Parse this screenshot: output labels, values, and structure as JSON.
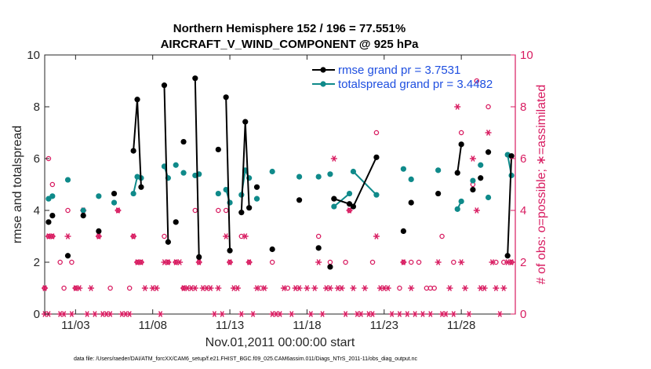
{
  "chart_data": {
    "type": "line",
    "title": "Northern Hemisphere 152 / 196 = 77.551%",
    "subtitle": "AIRCRAFT_V_WIND_COMPONENT @ 925 hPa",
    "xlabel": "Nov.01,2011 00:00:00 start",
    "ylabel": "rmse and totalspread",
    "y2label": "# of obs: o=possible; ∗=assimilated",
    "footer": "data file: /Users/raeder/DAI/ATM_forcXX/CAM6_setup/f.e21.FHIST_BGC.f09_025.CAM6assim.011/Diags_NTrS_2011-11/obs_diag_output.nc",
    "xlim": [
      1,
      31.5
    ],
    "ylim": [
      0,
      10
    ],
    "y2lim": [
      0,
      10
    ],
    "x_ticks": [
      3,
      8,
      13,
      18,
      23,
      28
    ],
    "x_tick_labels": [
      "11/03",
      "11/08",
      "11/13",
      "11/18",
      "11/23",
      "11/28"
    ],
    "y_ticks": [
      0,
      2,
      4,
      6,
      8,
      10
    ],
    "y_tick_labels": [
      "0",
      "2",
      "4",
      "6",
      "8",
      "10"
    ],
    "y2_ticks": [
      0,
      2,
      4,
      6,
      8,
      10
    ],
    "y2_tick_labels": [
      "0",
      "2",
      "4",
      "6",
      "8",
      "10"
    ],
    "colors": {
      "rmse": "#000000",
      "spread": "#0f8a8a",
      "obs": "#d81b60",
      "legend_text": "#1f4fe0"
    },
    "legend": [
      {
        "name": "rmse grand pr = 3.7531",
        "color": "#000000"
      },
      {
        "name": "totalspread grand pr = 3.4482",
        "color": "#0f8a8a"
      }
    ],
    "series": [
      {
        "name": "rmse",
        "color": "#000000",
        "points": [
          {
            "x": 1.25,
            "y": 3.55
          },
          {
            "x": 1.5,
            "y": 3.8
          },
          {
            "x": 2.5,
            "y": 2.25
          },
          {
            "x": 3.5,
            "y": 3.8
          },
          {
            "x": 4.5,
            "y": 3.2
          },
          {
            "x": 5.5,
            "y": 4.65
          },
          {
            "x": 6.75,
            "y": 6.3
          },
          {
            "x": 7.0,
            "y": 8.28
          },
          {
            "x": 7.25,
            "y": 4.9
          },
          {
            "x": 8.75,
            "y": 8.83
          },
          {
            "x": 9.0,
            "y": 2.78
          },
          {
            "x": 9.5,
            "y": 3.55
          },
          {
            "x": 10.0,
            "y": 6.65
          },
          {
            "x": 10.75,
            "y": 9.1
          },
          {
            "x": 11.0,
            "y": 2.2
          },
          {
            "x": 12.25,
            "y": 6.35
          },
          {
            "x": 12.75,
            "y": 8.37
          },
          {
            "x": 13.0,
            "y": 2.45
          },
          {
            "x": 13.75,
            "y": 3.92
          },
          {
            "x": 14.0,
            "y": 7.42
          },
          {
            "x": 14.25,
            "y": 4.1
          },
          {
            "x": 14.75,
            "y": 4.9
          },
          {
            "x": 15.75,
            "y": 2.5
          },
          {
            "x": 17.5,
            "y": 4.4
          },
          {
            "x": 18.75,
            "y": 2.55
          },
          {
            "x": 19.5,
            "y": 1.82
          },
          {
            "x": 19.75,
            "y": 4.45
          },
          {
            "x": 20.75,
            "y": 4.25
          },
          {
            "x": 21.0,
            "y": 4.15
          },
          {
            "x": 22.5,
            "y": 6.05
          },
          {
            "x": 24.25,
            "y": 3.2
          },
          {
            "x": 24.75,
            "y": 4.3
          },
          {
            "x": 26.5,
            "y": 4.65
          },
          {
            "x": 27.75,
            "y": 5.45
          },
          {
            "x": 28.0,
            "y": 6.55
          },
          {
            "x": 28.75,
            "y": 4.8
          },
          {
            "x": 29.25,
            "y": 5.25
          },
          {
            "x": 29.75,
            "y": 6.25
          },
          {
            "x": 31.0,
            "y": 2.25
          },
          {
            "x": 31.25,
            "y": 6.1
          }
        ],
        "segments": [
          [
            6,
            7,
            8
          ],
          [
            9,
            10
          ],
          [
            13,
            14
          ],
          [
            16,
            17
          ],
          [
            18,
            19,
            20
          ],
          [
            26,
            27
          ],
          [
            28,
            29
          ],
          [
            33,
            34
          ],
          [
            38,
            39
          ]
        ]
      },
      {
        "name": "totalspread",
        "color": "#0f8a8a",
        "points": [
          {
            "x": 1.25,
            "y": 4.45
          },
          {
            "x": 1.5,
            "y": 4.55
          },
          {
            "x": 2.5,
            "y": 5.18
          },
          {
            "x": 3.5,
            "y": 4.0
          },
          {
            "x": 4.5,
            "y": 4.55
          },
          {
            "x": 5.5,
            "y": 4.3
          },
          {
            "x": 6.75,
            "y": 4.65
          },
          {
            "x": 7.0,
            "y": 5.3
          },
          {
            "x": 7.25,
            "y": 5.25
          },
          {
            "x": 8.75,
            "y": 5.7
          },
          {
            "x": 9.0,
            "y": 5.25
          },
          {
            "x": 9.5,
            "y": 5.75
          },
          {
            "x": 10.0,
            "y": 5.45
          },
          {
            "x": 10.75,
            "y": 5.35
          },
          {
            "x": 11.0,
            "y": 5.4
          },
          {
            "x": 12.25,
            "y": 4.65
          },
          {
            "x": 12.75,
            "y": 4.8
          },
          {
            "x": 13.0,
            "y": 4.3
          },
          {
            "x": 13.75,
            "y": 4.6
          },
          {
            "x": 14.0,
            "y": 5.55
          },
          {
            "x": 14.25,
            "y": 5.25
          },
          {
            "x": 14.75,
            "y": 4.45
          },
          {
            "x": 15.75,
            "y": 5.5
          },
          {
            "x": 17.5,
            "y": 5.3
          },
          {
            "x": 18.75,
            "y": 5.3
          },
          {
            "x": 19.5,
            "y": 5.4
          },
          {
            "x": 19.75,
            "y": 4.15
          },
          {
            "x": 20.75,
            "y": 4.65
          },
          {
            "x": 21.0,
            "y": 5.5
          },
          {
            "x": 22.5,
            "y": 4.6
          },
          {
            "x": 24.25,
            "y": 5.6
          },
          {
            "x": 24.75,
            "y": 5.2
          },
          {
            "x": 26.5,
            "y": 5.55
          },
          {
            "x": 27.75,
            "y": 4.05
          },
          {
            "x": 28.0,
            "y": 4.35
          },
          {
            "x": 28.75,
            "y": 5.15
          },
          {
            "x": 29.25,
            "y": 5.75
          },
          {
            "x": 29.75,
            "y": 4.5
          },
          {
            "x": 31.0,
            "y": 6.15
          },
          {
            "x": 31.25,
            "y": 5.35
          }
        ],
        "segments": [
          [
            6,
            7,
            8
          ],
          [
            9,
            10
          ],
          [
            13,
            14
          ],
          [
            16,
            17
          ],
          [
            18,
            19,
            20
          ],
          [
            26,
            27
          ],
          [
            28,
            29
          ],
          [
            33,
            34
          ],
          [
            38,
            39
          ]
        ]
      },
      {
        "name": "possible obs",
        "marker": "o",
        "axis": "right",
        "points": [
          {
            "x": 1.0,
            "y": 1
          },
          {
            "x": 1.25,
            "y": 3
          },
          {
            "x": 1.5,
            "y": 3
          },
          {
            "x": 1.5,
            "y": 5
          },
          {
            "x": 1.25,
            "y": 6
          },
          {
            "x": 2.0,
            "y": 2
          },
          {
            "x": 2.25,
            "y": 1
          },
          {
            "x": 2.5,
            "y": 4
          },
          {
            "x": 2.75,
            "y": 2
          },
          {
            "x": 3.0,
            "y": 1
          },
          {
            "x": 3.5,
            "y": 4
          },
          {
            "x": 4.5,
            "y": 3
          },
          {
            "x": 5.25,
            "y": 1
          },
          {
            "x": 5.75,
            "y": 4
          },
          {
            "x": 6.5,
            "y": 1
          },
          {
            "x": 6.75,
            "y": 3
          },
          {
            "x": 7.0,
            "y": 2
          },
          {
            "x": 7.25,
            "y": 2
          },
          {
            "x": 8.75,
            "y": 3
          },
          {
            "x": 9.0,
            "y": 2
          },
          {
            "x": 9.5,
            "y": 2
          },
          {
            "x": 10.0,
            "y": 1
          },
          {
            "x": 10.75,
            "y": 4
          },
          {
            "x": 11.0,
            "y": 2
          },
          {
            "x": 12.25,
            "y": 4
          },
          {
            "x": 12.75,
            "y": 4
          },
          {
            "x": 13.0,
            "y": 2
          },
          {
            "x": 13.75,
            "y": 3
          },
          {
            "x": 14.25,
            "y": 2
          },
          {
            "x": 15.0,
            "y": 1
          },
          {
            "x": 15.75,
            "y": 2
          },
          {
            "x": 16.75,
            "y": 1
          },
          {
            "x": 18.75,
            "y": 3
          },
          {
            "x": 19.5,
            "y": 2
          },
          {
            "x": 20.5,
            "y": 2
          },
          {
            "x": 20.75,
            "y": 4
          },
          {
            "x": 22.25,
            "y": 2
          },
          {
            "x": 22.5,
            "y": 7
          },
          {
            "x": 24.0,
            "y": 1
          },
          {
            "x": 24.25,
            "y": 2
          },
          {
            "x": 24.75,
            "y": 2
          },
          {
            "x": 25.25,
            "y": 2
          },
          {
            "x": 25.75,
            "y": 1
          },
          {
            "x": 26.0,
            "y": 1
          },
          {
            "x": 26.25,
            "y": 1
          },
          {
            "x": 26.75,
            "y": 3
          },
          {
            "x": 27.5,
            "y": 2
          },
          {
            "x": 28.0,
            "y": 7
          },
          {
            "x": 28.75,
            "y": 5
          },
          {
            "x": 29.0,
            "y": 9
          },
          {
            "x": 29.75,
            "y": 8
          },
          {
            "x": 30.25,
            "y": 2
          },
          {
            "x": 30.75,
            "y": 2
          },
          {
            "x": 31.25,
            "y": 2
          }
        ]
      },
      {
        "name": "assimilated obs",
        "marker": "*",
        "axis": "right",
        "points": [
          {
            "x": 1.0,
            "y": 1
          },
          {
            "x": 1.25,
            "y": 3
          },
          {
            "x": 1.5,
            "y": 3
          },
          {
            "x": 1.0,
            "y": 0
          },
          {
            "x": 1.25,
            "y": 0
          },
          {
            "x": 2.0,
            "y": 0
          },
          {
            "x": 2.25,
            "y": 0
          },
          {
            "x": 2.5,
            "y": 3
          },
          {
            "x": 2.75,
            "y": 0
          },
          {
            "x": 3.0,
            "y": 1
          },
          {
            "x": 3.25,
            "y": 1
          },
          {
            "x": 3.5,
            "y": 4
          },
          {
            "x": 3.75,
            "y": 0
          },
          {
            "x": 4.0,
            "y": 1
          },
          {
            "x": 4.25,
            "y": 0
          },
          {
            "x": 4.5,
            "y": 3
          },
          {
            "x": 4.75,
            "y": 0
          },
          {
            "x": 5.0,
            "y": 0
          },
          {
            "x": 5.25,
            "y": 0
          },
          {
            "x": 5.75,
            "y": 4
          },
          {
            "x": 6.0,
            "y": 0
          },
          {
            "x": 6.25,
            "y": 0
          },
          {
            "x": 6.5,
            "y": 0
          },
          {
            "x": 6.75,
            "y": 3
          },
          {
            "x": 7.0,
            "y": 2
          },
          {
            "x": 7.25,
            "y": 2
          },
          {
            "x": 7.5,
            "y": 1
          },
          {
            "x": 8.0,
            "y": 1
          },
          {
            "x": 8.25,
            "y": 1
          },
          {
            "x": 8.5,
            "y": 0
          },
          {
            "x": 8.75,
            "y": 2
          },
          {
            "x": 9.0,
            "y": 2
          },
          {
            "x": 9.5,
            "y": 2
          },
          {
            "x": 9.75,
            "y": 2
          },
          {
            "x": 10.0,
            "y": 1
          },
          {
            "x": 10.25,
            "y": 1
          },
          {
            "x": 10.5,
            "y": 1
          },
          {
            "x": 10.75,
            "y": 1
          },
          {
            "x": 11.0,
            "y": 2
          },
          {
            "x": 11.25,
            "y": 1
          },
          {
            "x": 11.5,
            "y": 1
          },
          {
            "x": 11.75,
            "y": 1
          },
          {
            "x": 12.0,
            "y": 0
          },
          {
            "x": 12.25,
            "y": 1
          },
          {
            "x": 12.5,
            "y": 0
          },
          {
            "x": 12.75,
            "y": 3
          },
          {
            "x": 13.0,
            "y": 2
          },
          {
            "x": 13.25,
            "y": 1
          },
          {
            "x": 13.5,
            "y": 1
          },
          {
            "x": 13.75,
            "y": 0
          },
          {
            "x": 14.0,
            "y": 3
          },
          {
            "x": 14.25,
            "y": 2
          },
          {
            "x": 14.5,
            "y": 0
          },
          {
            "x": 14.75,
            "y": 1
          },
          {
            "x": 15.25,
            "y": 1
          },
          {
            "x": 15.75,
            "y": 0
          },
          {
            "x": 16.0,
            "y": 0
          },
          {
            "x": 16.25,
            "y": 0
          },
          {
            "x": 16.5,
            "y": 1
          },
          {
            "x": 17.0,
            "y": 0
          },
          {
            "x": 17.25,
            "y": 1
          },
          {
            "x": 17.5,
            "y": 1
          },
          {
            "x": 18.0,
            "y": 1
          },
          {
            "x": 18.25,
            "y": 0
          },
          {
            "x": 18.5,
            "y": 1
          },
          {
            "x": 18.75,
            "y": 2
          },
          {
            "x": 19.0,
            "y": 0
          },
          {
            "x": 19.25,
            "y": 1
          },
          {
            "x": 19.5,
            "y": 1
          },
          {
            "x": 19.75,
            "y": 6
          },
          {
            "x": 20.0,
            "y": 1
          },
          {
            "x": 20.25,
            "y": 1
          },
          {
            "x": 20.5,
            "y": 0
          },
          {
            "x": 20.75,
            "y": 4
          },
          {
            "x": 21.0,
            "y": 1
          },
          {
            "x": 21.25,
            "y": 0
          },
          {
            "x": 21.5,
            "y": 0
          },
          {
            "x": 21.75,
            "y": 1
          },
          {
            "x": 22.0,
            "y": 0
          },
          {
            "x": 22.25,
            "y": 0
          },
          {
            "x": 22.5,
            "y": 3
          },
          {
            "x": 22.75,
            "y": 1
          },
          {
            "x": 23.0,
            "y": 1
          },
          {
            "x": 23.25,
            "y": 1
          },
          {
            "x": 23.5,
            "y": 0
          },
          {
            "x": 24.0,
            "y": 0
          },
          {
            "x": 24.25,
            "y": 2
          },
          {
            "x": 24.5,
            "y": 0
          },
          {
            "x": 24.75,
            "y": 1
          },
          {
            "x": 25.0,
            "y": 0
          },
          {
            "x": 25.5,
            "y": 0
          },
          {
            "x": 26.0,
            "y": 0
          },
          {
            "x": 26.5,
            "y": 2
          },
          {
            "x": 26.75,
            "y": 0
          },
          {
            "x": 27.0,
            "y": 0
          },
          {
            "x": 27.25,
            "y": 1
          },
          {
            "x": 27.5,
            "y": 0
          },
          {
            "x": 27.75,
            "y": 8
          },
          {
            "x": 28.0,
            "y": 2
          },
          {
            "x": 28.25,
            "y": 1
          },
          {
            "x": 28.5,
            "y": 0
          },
          {
            "x": 28.75,
            "y": 6
          },
          {
            "x": 29.0,
            "y": 4
          },
          {
            "x": 29.25,
            "y": 1
          },
          {
            "x": 29.5,
            "y": 1
          },
          {
            "x": 29.75,
            "y": 7
          },
          {
            "x": 30.0,
            "y": 2
          },
          {
            "x": 30.25,
            "y": 1
          },
          {
            "x": 30.5,
            "y": 0
          },
          {
            "x": 30.75,
            "y": 1
          },
          {
            "x": 31.0,
            "y": 2
          },
          {
            "x": 31.25,
            "y": 2
          }
        ]
      }
    ]
  }
}
